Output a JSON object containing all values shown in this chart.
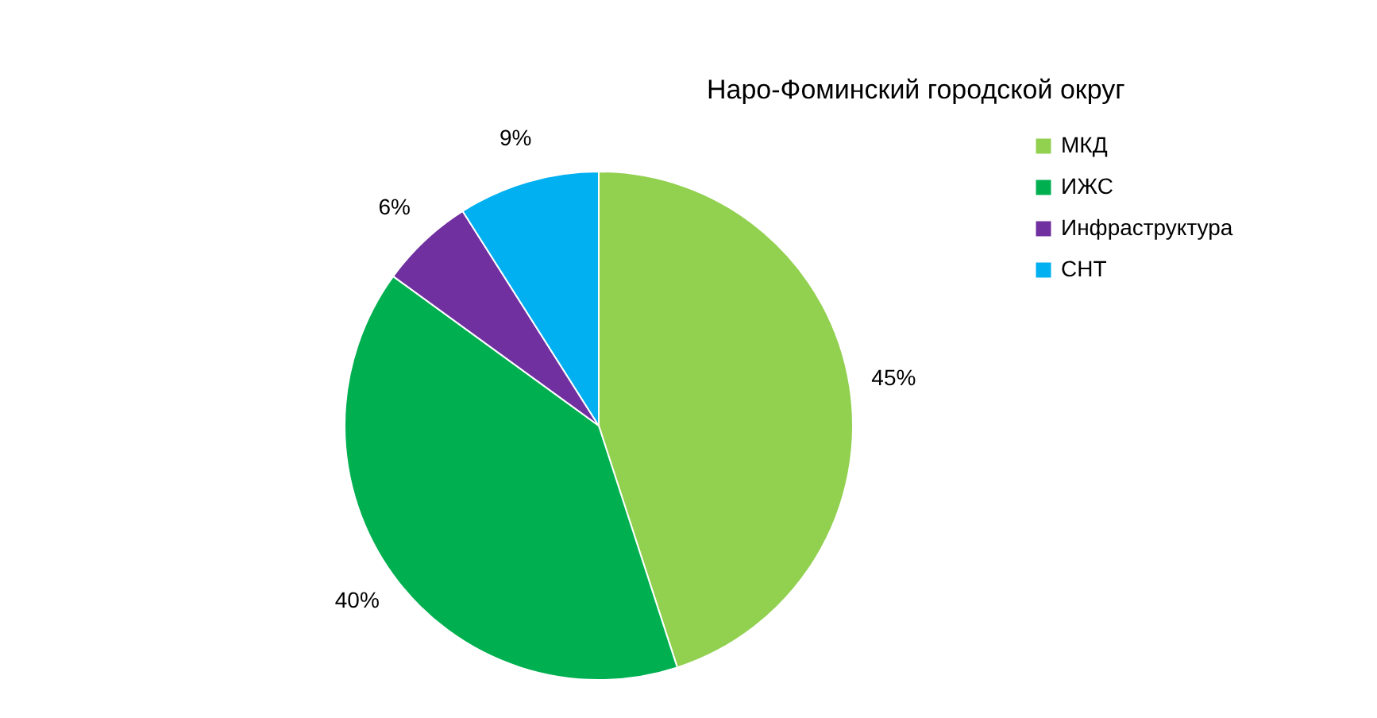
{
  "chart_data": {
    "type": "pie",
    "title": "Наро-Фоминский городской округ",
    "categories": [
      "МКД",
      "ИЖС",
      "Инфраструктура",
      "СНТ"
    ],
    "values": [
      45,
      40,
      6,
      9
    ],
    "value_labels": [
      "45%",
      "40%",
      "6%",
      "9%"
    ],
    "colors": [
      "#92d050",
      "#00b050",
      "#7030a0",
      "#00b0f0"
    ],
    "legend": "top right"
  }
}
